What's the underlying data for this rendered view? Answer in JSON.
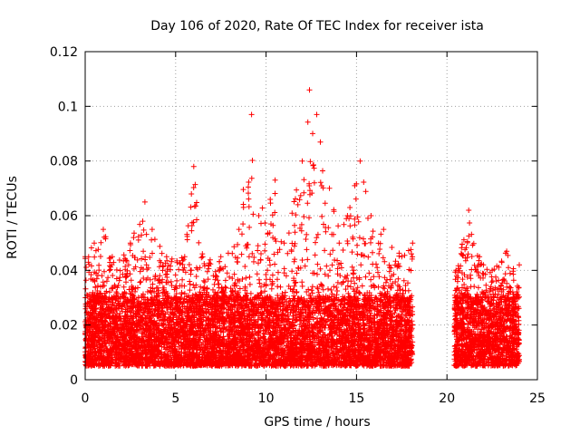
{
  "chart_data": {
    "type": "scatter",
    "title": "Day 106 of 2020, Rate Of TEC Index for receiver ista",
    "xlabel": "GPS time / hours",
    "ylabel": "ROTI / TECUs",
    "xlim": [
      0,
      25
    ],
    "ylim": [
      0,
      0.12
    ],
    "xticks": [
      "0",
      "5",
      "10",
      "15",
      "20",
      "25"
    ],
    "yticks": [
      "0",
      "0.02",
      "0.04",
      "0.06",
      "0.08",
      "0.1",
      "0.12"
    ],
    "grid": true,
    "marker": "+",
    "color": "#ff0000",
    "series": [
      {
        "name": "ROTI",
        "segments": [
          [
            0,
            18.1
          ],
          [
            20.4,
            24.0
          ]
        ],
        "baseline_range": [
          0.005,
          0.03
        ],
        "upper_envelope": [
          [
            0.0,
            0.045
          ],
          [
            0.5,
            0.05
          ],
          [
            1.0,
            0.055
          ],
          [
            1.5,
            0.045
          ],
          [
            2.5,
            0.05
          ],
          [
            3.3,
            0.065
          ],
          [
            3.7,
            0.055
          ],
          [
            4.5,
            0.045
          ],
          [
            5.5,
            0.045
          ],
          [
            6.0,
            0.078
          ],
          [
            6.5,
            0.045
          ],
          [
            7.5,
            0.045
          ],
          [
            8.5,
            0.055
          ],
          [
            9.2,
            0.097
          ],
          [
            9.6,
            0.06
          ],
          [
            10.5,
            0.073
          ],
          [
            11.0,
            0.05
          ],
          [
            12.0,
            0.08
          ],
          [
            12.4,
            0.106
          ],
          [
            12.8,
            0.097
          ],
          [
            13.5,
            0.07
          ],
          [
            14.5,
            0.06
          ],
          [
            15.2,
            0.08
          ],
          [
            15.8,
            0.06
          ],
          [
            16.5,
            0.055
          ],
          [
            17.5,
            0.045
          ],
          [
            18.1,
            0.05
          ],
          [
            20.5,
            0.04
          ],
          [
            21.2,
            0.062
          ],
          [
            21.8,
            0.045
          ],
          [
            22.5,
            0.04
          ],
          [
            23.3,
            0.047
          ],
          [
            24.0,
            0.042
          ]
        ]
      }
    ]
  }
}
